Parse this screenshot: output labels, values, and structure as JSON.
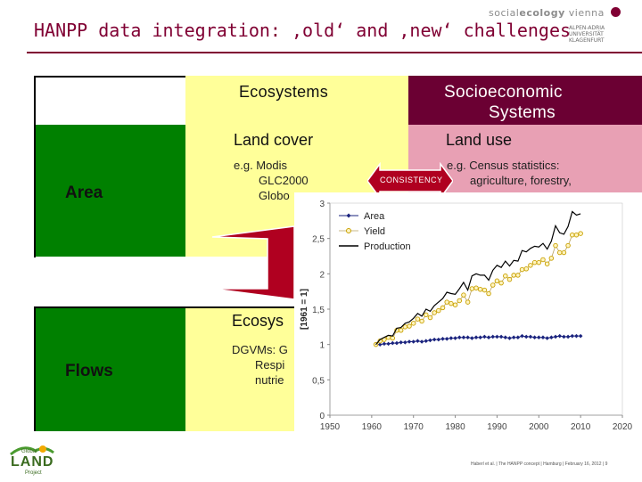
{
  "slide": {
    "title": "HANPP data integration: ‚old‘ and ‚new‘ challenges",
    "accent_color": "#800033",
    "logo_top": {
      "brand_a": "social",
      "brand_b": "ecology",
      "brand_c": " vienna",
      "uni_text": "ALPEN-ADRIA\nUNIVERSITÄT\nKLAGENFURT"
    },
    "logo_bottom": {
      "line1": "Global",
      "line2": "LAND",
      "line3": "Project"
    },
    "footer": "Haberl et al. | The HANPP concept | Hamburg | February 16, 2012 | 9"
  },
  "table": {
    "col_ecosystems": "Ecosystems",
    "col_socio_line1": "Socioeconomic",
    "col_socio_line2": "Systems",
    "row_area": "Area",
    "row_flows": "Flows",
    "land_cover_title": "Land cover",
    "land_cover_line1": "e.g. Modis",
    "land_cover_line2": "GLC2000",
    "land_cover_line3": "Globo",
    "land_use_title": "Land use",
    "land_use_line1": "e.g. Census statistics:",
    "land_use_line2": "agriculture, forestry,",
    "consistency_label": "CONSISTENCY",
    "eco_flows_title": "Ecosys",
    "eco_flows_line1": "DGVMs: G",
    "eco_flows_line2": "Respi",
    "eco_flows_line3": "nutrie"
  },
  "chart_data": {
    "type": "line",
    "ylabel": "[1961 = 1]",
    "xlim": [
      1950,
      2020
    ],
    "ylim": [
      0,
      3
    ],
    "xticks": [
      "1950",
      "1960",
      "1970",
      "1980",
      "1990",
      "2000",
      "2010",
      "2020"
    ],
    "yticks": [
      "0",
      "0,5",
      "1",
      "1,5",
      "2",
      "2,5",
      "3"
    ],
    "legend_position": "top-left",
    "series": [
      {
        "name": "Area",
        "color": "#1a237e",
        "marker": "diamond",
        "x": [
          1961,
          1962,
          1963,
          1964,
          1965,
          1966,
          1967,
          1968,
          1969,
          1970,
          1971,
          1972,
          1973,
          1974,
          1975,
          1976,
          1977,
          1978,
          1979,
          1980,
          1981,
          1982,
          1983,
          1984,
          1985,
          1986,
          1987,
          1988,
          1989,
          1990,
          1991,
          1992,
          1993,
          1994,
          1995,
          1996,
          1997,
          1998,
          1999,
          2000,
          2001,
          2002,
          2003,
          2004,
          2005,
          2006,
          2007,
          2008,
          2009,
          2010
        ],
        "values": [
          1.0,
          1.0,
          1.01,
          1.01,
          1.02,
          1.02,
          1.03,
          1.03,
          1.04,
          1.04,
          1.05,
          1.04,
          1.05,
          1.06,
          1.07,
          1.07,
          1.08,
          1.08,
          1.09,
          1.09,
          1.1,
          1.1,
          1.1,
          1.09,
          1.1,
          1.1,
          1.11,
          1.1,
          1.11,
          1.11,
          1.11,
          1.1,
          1.09,
          1.1,
          1.1,
          1.12,
          1.11,
          1.11,
          1.1,
          1.1,
          1.1,
          1.09,
          1.1,
          1.11,
          1.12,
          1.11,
          1.11,
          1.12,
          1.12,
          1.12
        ]
      },
      {
        "name": "Yield",
        "color": "#e0b000",
        "marker": "circle",
        "x": [
          1961,
          1962,
          1963,
          1964,
          1965,
          1966,
          1967,
          1968,
          1969,
          1970,
          1971,
          1972,
          1973,
          1974,
          1975,
          1976,
          1977,
          1978,
          1979,
          1980,
          1981,
          1982,
          1983,
          1984,
          1985,
          1986,
          1987,
          1988,
          1989,
          1990,
          1991,
          1992,
          1993,
          1994,
          1995,
          1996,
          1997,
          1998,
          1999,
          2000,
          2001,
          2002,
          2003,
          2004,
          2005,
          2006,
          2007,
          2008,
          2009,
          2010
        ],
        "values": [
          1.0,
          1.05,
          1.07,
          1.1,
          1.09,
          1.2,
          1.2,
          1.25,
          1.26,
          1.3,
          1.36,
          1.33,
          1.42,
          1.38,
          1.45,
          1.48,
          1.52,
          1.6,
          1.58,
          1.56,
          1.62,
          1.7,
          1.6,
          1.79,
          1.8,
          1.78,
          1.77,
          1.72,
          1.84,
          1.9,
          1.87,
          1.97,
          1.92,
          1.98,
          1.98,
          2.06,
          2.07,
          2.12,
          2.16,
          2.16,
          2.2,
          2.14,
          2.22,
          2.4,
          2.3,
          2.3,
          2.4,
          2.55,
          2.55,
          2.57
        ]
      },
      {
        "name": "Production",
        "color": "#000000",
        "marker": "none",
        "x": [
          1961,
          1962,
          1963,
          1964,
          1965,
          1966,
          1967,
          1968,
          1969,
          1970,
          1971,
          1972,
          1973,
          1974,
          1975,
          1976,
          1977,
          1978,
          1979,
          1980,
          1981,
          1982,
          1983,
          1984,
          1985,
          1986,
          1987,
          1988,
          1989,
          1990,
          1991,
          1992,
          1993,
          1994,
          1995,
          1996,
          1997,
          1998,
          1999,
          2000,
          2001,
          2002,
          2003,
          2004,
          2005,
          2006,
          2007,
          2008,
          2009,
          2010
        ],
        "values": [
          1.0,
          1.07,
          1.1,
          1.13,
          1.12,
          1.23,
          1.24,
          1.3,
          1.32,
          1.37,
          1.44,
          1.4,
          1.5,
          1.47,
          1.55,
          1.6,
          1.65,
          1.74,
          1.72,
          1.71,
          1.79,
          1.88,
          1.77,
          1.97,
          2.0,
          1.98,
          1.98,
          1.91,
          2.05,
          2.12,
          2.09,
          2.18,
          2.11,
          2.19,
          2.18,
          2.33,
          2.31,
          2.36,
          2.39,
          2.38,
          2.43,
          2.35,
          2.46,
          2.68,
          2.58,
          2.56,
          2.67,
          2.88,
          2.83,
          2.85
        ]
      }
    ]
  }
}
